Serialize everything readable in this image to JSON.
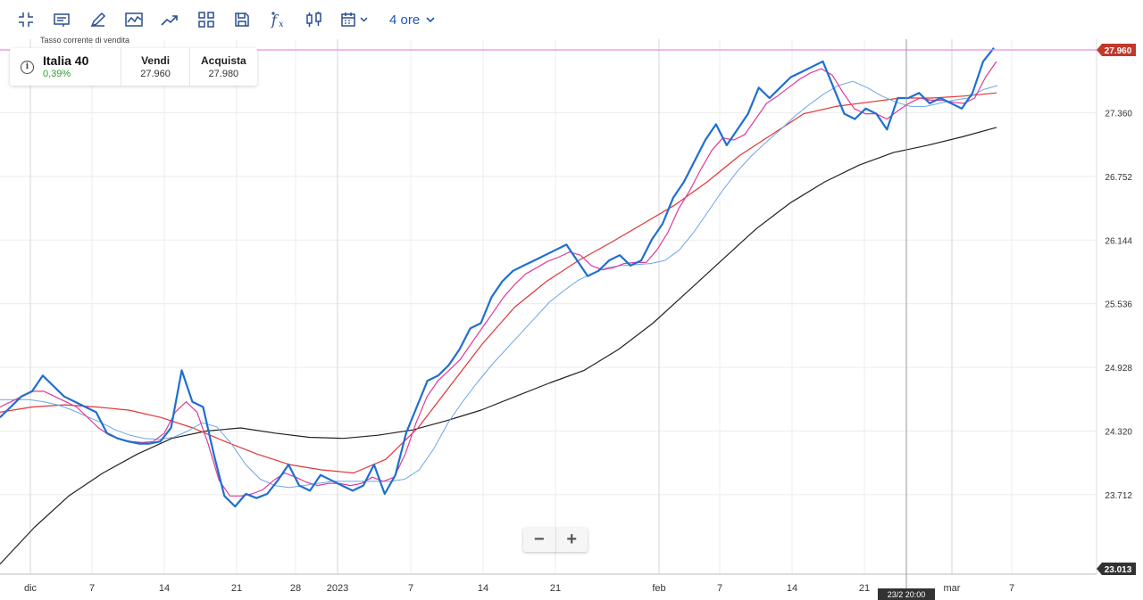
{
  "toolbar": {
    "icons": [
      "collapse-icon",
      "comment-icon",
      "pencil-icon",
      "line-chart-icon",
      "trend-icon",
      "layout-grid-icon",
      "save-icon",
      "function-icon",
      "candlestick-icon",
      "calendar-icon"
    ],
    "timeframe_label": "4 ore"
  },
  "instrument_card": {
    "caption": "Tasso corrente di vendita",
    "name": "Italia 40",
    "change": "0,39%",
    "sell_label": "Vendi",
    "sell_value": "27.960",
    "buy_label": "Acquista",
    "buy_value": "27.980"
  },
  "zoom": {
    "minus": "−",
    "plus": "+"
  },
  "crosshair": {
    "date_label": "23/2 20:00"
  },
  "colors": {
    "price": "#1f6fd0",
    "ma_fast": "#e0399a",
    "ma_mid": "#6aa6e8",
    "ma_slow": "#e03535",
    "ma_long": "#222222",
    "current_line": "#e98de0",
    "current_badge": "#c0392b"
  },
  "chart_data": {
    "type": "line",
    "y_ticks": [
      "27.960",
      "27.360",
      "26.752",
      "26.144",
      "25.536",
      "24.928",
      "24.320",
      "23.712",
      "23.013"
    ],
    "x_ticks": [
      "dic",
      "7",
      "14",
      "21",
      "28",
      "2023",
      "7",
      "14",
      "21",
      "feb",
      "7",
      "14",
      "21",
      "mar",
      "7"
    ],
    "ylim": [
      23.013,
      27.96
    ],
    "current_price_label": "27.960",
    "bottom_price_label": "23.013",
    "series": [
      {
        "values": [
          24.45,
          24.55,
          24.65,
          24.7,
          24.85,
          24.75,
          24.65,
          24.6,
          24.55,
          24.5,
          24.3,
          24.25,
          24.22,
          24.2,
          24.2,
          24.22,
          24.35,
          24.9,
          24.6,
          24.55,
          24.1,
          23.7,
          23.6,
          23.72,
          23.68,
          23.72,
          23.85,
          24.0,
          23.8,
          23.75,
          23.9,
          23.85,
          23.8,
          23.75,
          23.8,
          24.0,
          23.72,
          23.9,
          24.3,
          24.55,
          24.8,
          24.85,
          24.95,
          25.1,
          25.3,
          25.35,
          25.6,
          25.75,
          25.85,
          25.9,
          25.95,
          26.0,
          26.05,
          26.1,
          25.95,
          25.8,
          25.85,
          25.95,
          26.0,
          25.9,
          25.95,
          26.15,
          26.3,
          26.55,
          26.7,
          26.9,
          27.1,
          27.25,
          27.05,
          27.2,
          27.35,
          27.6,
          27.5,
          27.6,
          27.7,
          27.75,
          27.8,
          27.85,
          27.6,
          27.35,
          27.3,
          27.4,
          27.35,
          27.2,
          27.5,
          27.5,
          27.55,
          27.45,
          27.5,
          27.45,
          27.4,
          27.55,
          27.85,
          27.98
        ]
      },
      {
        "values": [
          24.55,
          24.6,
          24.65,
          24.7,
          24.7,
          24.65,
          24.6,
          24.55,
          24.45,
          24.35,
          24.28,
          24.24,
          24.22,
          24.21,
          24.22,
          24.3,
          24.5,
          24.6,
          24.5,
          24.2,
          23.85,
          23.7,
          23.7,
          23.72,
          23.76,
          23.85,
          23.92,
          23.88,
          23.83,
          23.8,
          23.82,
          23.82,
          23.8,
          23.82,
          23.88,
          23.84,
          23.88,
          24.1,
          24.4,
          24.65,
          24.8,
          24.9,
          25.0,
          25.15,
          25.3,
          25.45,
          25.6,
          25.72,
          25.82,
          25.88,
          25.94,
          25.98,
          26.03,
          26.0,
          25.9,
          25.86,
          25.88,
          25.92,
          25.93,
          25.93,
          26.05,
          26.22,
          26.45,
          26.62,
          26.82,
          27.0,
          27.12,
          27.1,
          27.15,
          27.3,
          27.45,
          27.52,
          27.6,
          27.68,
          27.74,
          27.78,
          27.72,
          27.55,
          27.4,
          27.35,
          27.35,
          27.3,
          27.38,
          27.45,
          27.5,
          27.48,
          27.48,
          27.46,
          27.45,
          27.5,
          27.7,
          27.85
        ]
      },
      {
        "values": [
          24.62,
          24.62,
          24.62,
          24.6,
          24.57,
          24.52,
          24.46,
          24.4,
          24.33,
          24.28,
          24.25,
          24.24,
          24.26,
          24.32,
          24.4,
          24.36,
          24.2,
          24.0,
          23.86,
          23.8,
          23.78,
          23.8,
          23.82,
          23.84,
          23.84,
          23.84,
          23.84,
          23.84,
          23.86,
          23.95,
          24.15,
          24.4,
          24.6,
          24.78,
          24.95,
          25.1,
          25.25,
          25.4,
          25.55,
          25.66,
          25.76,
          25.83,
          25.88,
          25.9,
          25.91,
          25.92,
          25.95,
          26.05,
          26.22,
          26.42,
          26.62,
          26.8,
          26.95,
          27.08,
          27.2,
          27.33,
          27.44,
          27.54,
          27.62,
          27.66,
          27.6,
          27.52,
          27.46,
          27.42,
          27.42,
          27.45,
          27.48,
          27.5,
          27.58,
          27.62
        ]
      },
      {
        "values": [
          24.5,
          24.55,
          24.57,
          24.55,
          24.52,
          24.45,
          24.35,
          24.22,
          24.1,
          24.0,
          23.95,
          23.92,
          24.05,
          24.35,
          24.75,
          25.15,
          25.5,
          25.75,
          25.95,
          26.12,
          26.3,
          26.48,
          26.7,
          26.95,
          27.15,
          27.35,
          27.42,
          27.46,
          27.5,
          27.5,
          27.52,
          27.55
        ]
      },
      {
        "values": [
          23.05,
          23.4,
          23.7,
          23.92,
          24.1,
          24.25,
          24.32,
          24.35,
          24.3,
          24.26,
          24.25,
          24.28,
          24.33,
          24.42,
          24.52,
          24.65,
          24.78,
          24.9,
          25.1,
          25.35,
          25.65,
          25.95,
          26.25,
          26.5,
          26.7,
          26.86,
          26.98,
          27.05,
          27.13,
          27.22
        ]
      }
    ]
  }
}
